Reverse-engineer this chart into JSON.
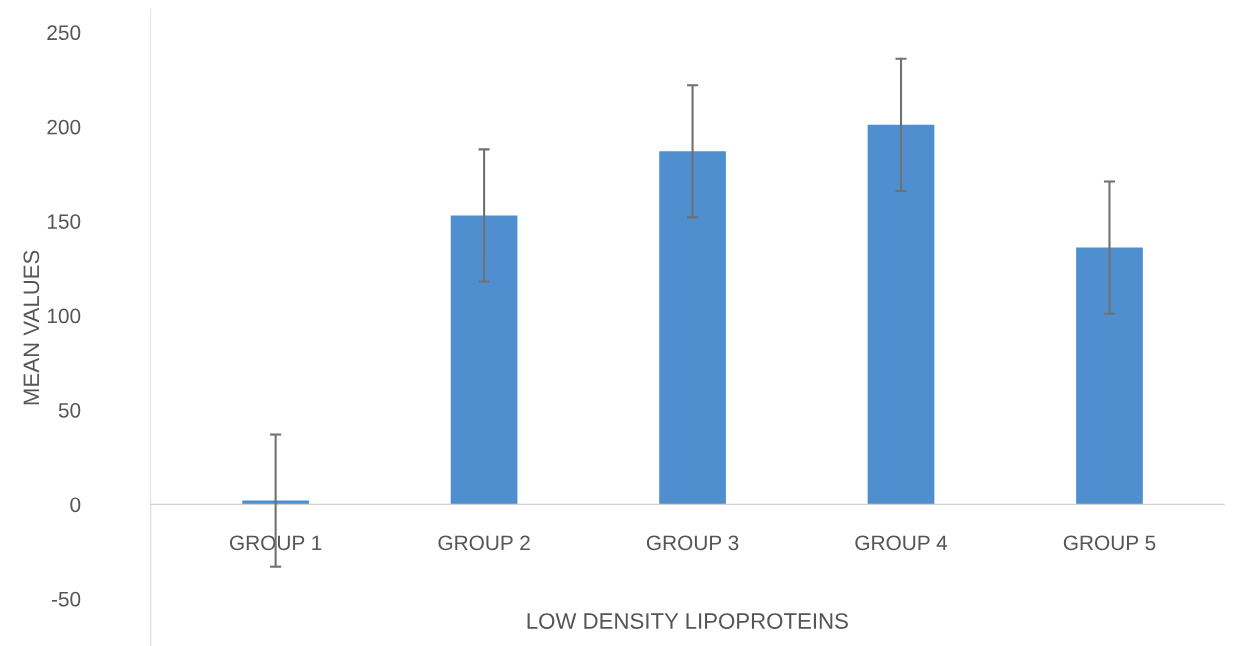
{
  "chart_data": {
    "type": "bar",
    "xlabel": "LOW DENSITY LIPOPROTEINS",
    "ylabel": "MEAN VALUES",
    "categories": [
      "GROUP 1",
      "GROUP 2",
      "GROUP 3",
      "GROUP 4",
      "GROUP 5"
    ],
    "values": [
      2,
      153,
      187,
      201,
      136
    ],
    "errors": [
      35,
      35,
      35,
      35,
      35
    ],
    "color": "#4f8fd0",
    "ylim": [
      -75,
      262
    ],
    "yticks": [
      -50,
      0,
      50,
      100,
      150,
      200,
      250
    ],
    "grid": false,
    "legend": false
  }
}
